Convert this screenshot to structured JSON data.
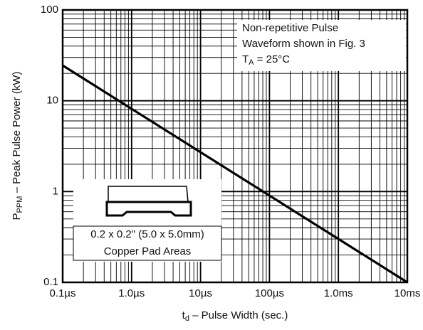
{
  "chart_data": {
    "type": "line",
    "log_x": true,
    "log_y": true,
    "grid": true,
    "minor_grid": true,
    "color": "#000000",
    "x": [
      1e-07,
      0.01
    ],
    "values": [
      24.5,
      0.1
    ],
    "xlim": [
      1e-07,
      0.01
    ],
    "xticks": [
      {
        "value": 1e-07,
        "label": "0.1µs"
      },
      {
        "value": 1e-06,
        "label": "1.0µs"
      },
      {
        "value": 1e-05,
        "label": "10µs"
      },
      {
        "value": 0.0001,
        "label": "100µs"
      },
      {
        "value": 0.001,
        "label": "1.0ms"
      },
      {
        "value": 0.01,
        "label": "10ms"
      }
    ],
    "ylim": [
      0.1,
      100
    ],
    "yticks": [
      0.1,
      1,
      10,
      100
    ],
    "xlabel": [
      "t",
      "d",
      " – Pulse Width (sec.)"
    ],
    "ylabel": [
      "P",
      "PPM",
      " – Peak Pulse Power (kW)"
    ],
    "annotation": [
      "Non-repetitive Pulse",
      "Waveform shown in Fig. 3",
      [
        "T",
        "A",
        " = 25°C"
      ]
    ],
    "inset": [
      "0.2 x 0.2\" (5.0 x 5.0mm)",
      "Copper Pad Areas"
    ]
  }
}
